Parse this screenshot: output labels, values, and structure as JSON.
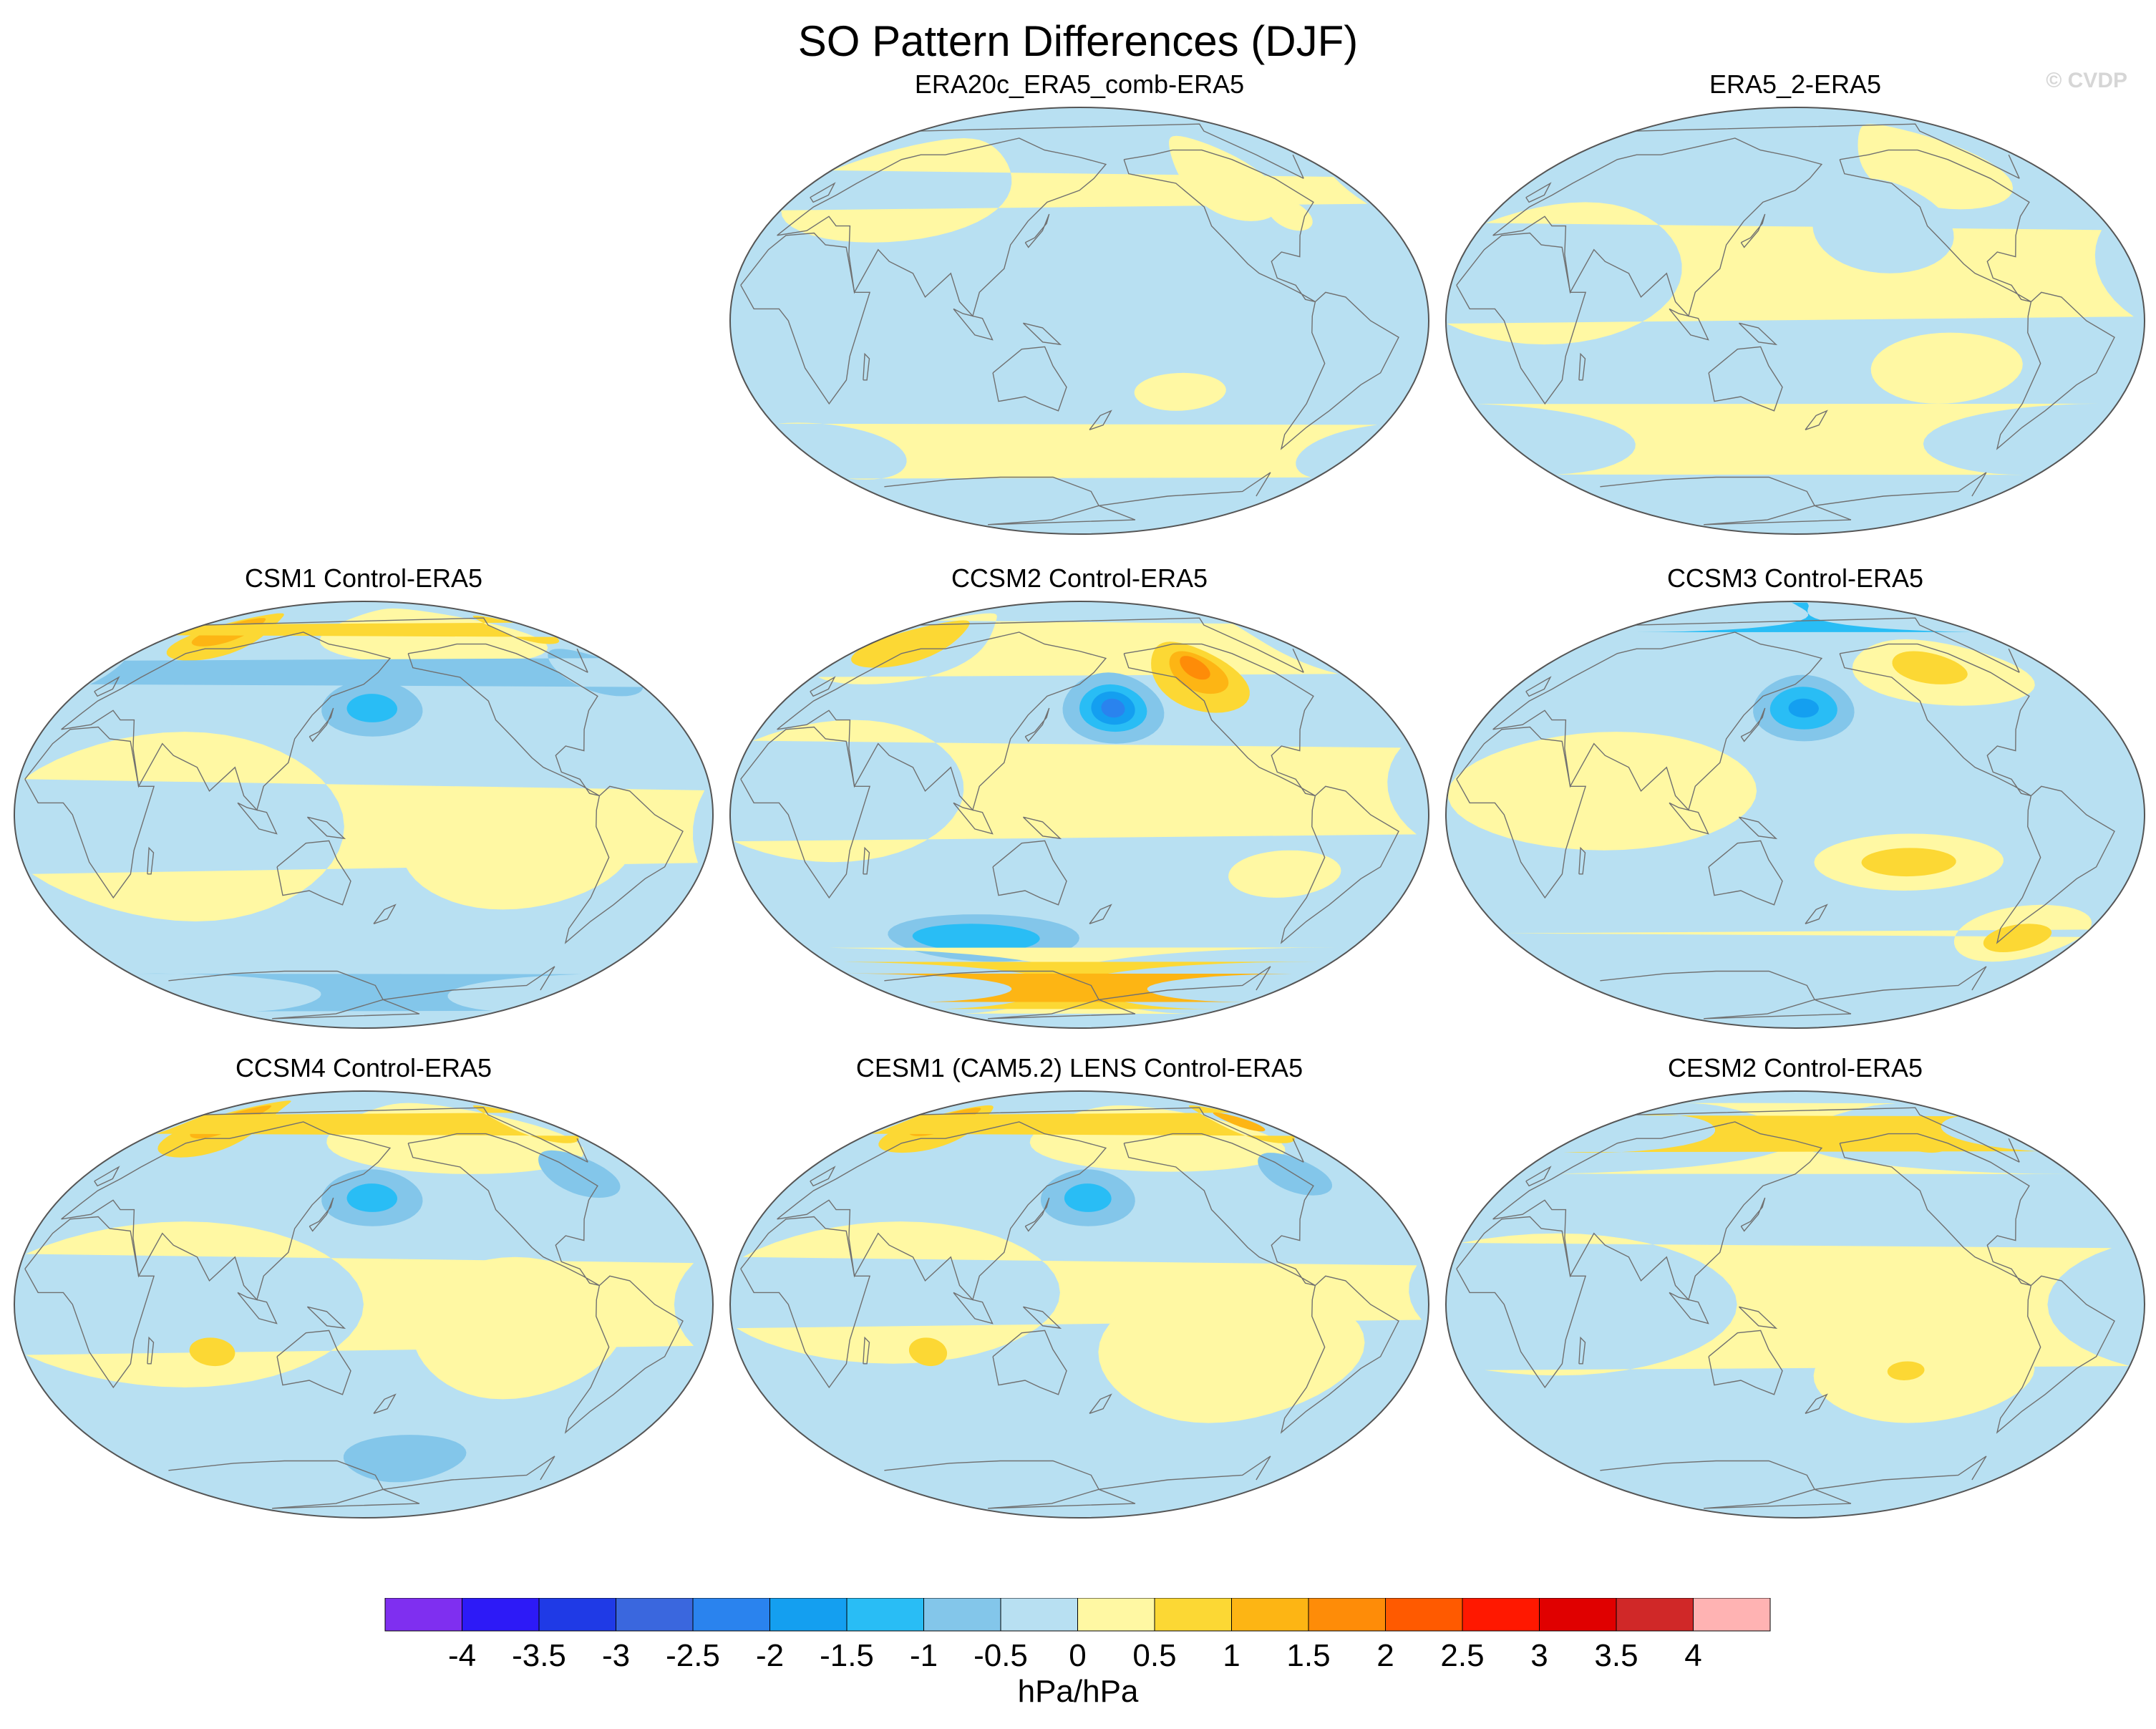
{
  "title": "SO Pattern Differences (DJF)",
  "credit": "© CVDP",
  "units": "hPa/hPa",
  "colors": {
    "land_outline": "#707070",
    "map_border": "#555555",
    "c_-0.5": "#b8e0f2",
    "c_-1": "#83c6ea",
    "c_-1.5": "#29bdf5",
    "c_-2": "#149ff0",
    "c_-2.5": "#2a83ee",
    "c_-3": "#3a67de",
    "c_0.5": "#fff8a3",
    "c_1": "#fcd834",
    "c_1.5": "#fdb514",
    "c_2": "#fe8c08"
  },
  "colorbar": {
    "ticks": [
      "-4",
      "-3.5",
      "-3",
      "-2.5",
      "-2",
      "-1.5",
      "-1",
      "-0.5",
      "0",
      "0.5",
      "1",
      "1.5",
      "2",
      "2.5",
      "3",
      "3.5",
      "4"
    ],
    "colors": [
      "#7f2ff0",
      "#2d1af7",
      "#1f3ae6",
      "#3a67de",
      "#2a83ee",
      "#149ff0",
      "#29bdf5",
      "#83c6ea",
      "#b8e0f2",
      "#fff8a3",
      "#fcd834",
      "#fdb514",
      "#fe8c08",
      "#ff5a00",
      "#ff1800",
      "#e00000",
      "#d02828",
      "#ffb3b3"
    ]
  },
  "panels": [
    {
      "title": "ERA20c_ERA5_comb-ERA5",
      "blobs": [
        {
          "c": "c_0.5",
          "lon": 45,
          "lat": 55,
          "rx": 70,
          "ry": 22
        },
        {
          "c": "c_0.5",
          "lon": -100,
          "lat": 60,
          "rx": 30,
          "ry": 18
        },
        {
          "c": "c_0.5",
          "lon": -5,
          "lat": -55,
          "rx": 50,
          "ry": 12
        },
        {
          "c": "c_0.5",
          "lon": -145,
          "lat": -30,
          "rx": 25,
          "ry": 8
        },
        {
          "c": "c_0.5",
          "lon": -75,
          "lat": 45,
          "rx": 12,
          "ry": 7
        }
      ]
    },
    {
      "title": "ERA5_2-ERA5",
      "blobs": [
        {
          "c": "c_0.5",
          "lon": 30,
          "lat": 20,
          "rx": 70,
          "ry": 30
        },
        {
          "c": "c_0.5",
          "lon": -100,
          "lat": 65,
          "rx": 50,
          "ry": 18
        },
        {
          "c": "c_0.5",
          "lon": -30,
          "lat": -50,
          "rx": 90,
          "ry": 15
        },
        {
          "c": "c_0.5",
          "lon": -120,
          "lat": -20,
          "rx": 40,
          "ry": 15
        },
        {
          "c": "c_-0.5",
          "lon": -150,
          "lat": 40,
          "rx": 40,
          "ry": 20
        }
      ]
    },
    {
      "title": "CSM1 Control-ERA5",
      "blobs": [
        {
          "c": "c_0.5",
          "lon": 60,
          "lat": -5,
          "rx": 90,
          "ry": 40
        },
        {
          "c": "c_0.5",
          "lon": -120,
          "lat": -15,
          "rx": 60,
          "ry": 25
        },
        {
          "c": "c_0.5",
          "lon": -140,
          "lat": 75,
          "rx": 100,
          "ry": 12
        },
        {
          "c": "c_1",
          "lon": 30,
          "lat": 75,
          "rx": 35,
          "ry": 10
        },
        {
          "c": "c_1.5",
          "lon": 25,
          "lat": 77,
          "rx": 22,
          "ry": 6
        },
        {
          "c": "c_1",
          "lon": -40,
          "lat": 78,
          "rx": 22,
          "ry": 6
        },
        {
          "c": "c_-1",
          "lon": 165,
          "lat": 45,
          "rx": 30,
          "ry": 12
        },
        {
          "c": "c_-1.5",
          "lon": 165,
          "lat": 45,
          "rx": 15,
          "ry": 6
        },
        {
          "c": "c_-1",
          "lon": -40,
          "lat": 60,
          "rx": 25,
          "ry": 10
        },
        {
          "c": "c_-1",
          "lon": 0,
          "lat": -75,
          "rx": 120,
          "ry": 8
        }
      ]
    },
    {
      "title": "CCSM2 Control-ERA5",
      "blobs": [
        {
          "c": "c_0.5",
          "lon": 30,
          "lat": 10,
          "rx": 70,
          "ry": 30
        },
        {
          "c": "c_0.5",
          "lon": -90,
          "lat": -25,
          "rx": 30,
          "ry": 10
        },
        {
          "c": "c_0.5",
          "lon": 20,
          "lat": 70,
          "rx": 60,
          "ry": 15
        },
        {
          "c": "c_1",
          "lon": 15,
          "lat": 72,
          "rx": 35,
          "ry": 10
        },
        {
          "c": "c_1",
          "lon": -120,
          "lat": 58,
          "rx": 30,
          "ry": 15
        },
        {
          "c": "c_1.5",
          "lon": -118,
          "lat": 60,
          "rx": 18,
          "ry": 9
        },
        {
          "c": "c_2",
          "lon": -118,
          "lat": 62,
          "rx": 9,
          "ry": 5
        },
        {
          "c": "c_-1",
          "lon": -180,
          "lat": 45,
          "rx": 30,
          "ry": 15
        },
        {
          "c": "c_-1.5",
          "lon": -180,
          "lat": 45,
          "rx": 20,
          "ry": 10
        },
        {
          "c": "c_-2",
          "lon": -180,
          "lat": 45,
          "rx": 13,
          "ry": 7
        },
        {
          "c": "c_-2.5",
          "lon": -180,
          "lat": 45,
          "rx": 7,
          "ry": 4
        },
        {
          "c": "c_-1",
          "lon": 100,
          "lat": -52,
          "rx": 60,
          "ry": 10
        },
        {
          "c": "c_-1.5",
          "lon": 95,
          "lat": -52,
          "rx": 40,
          "ry": 6
        },
        {
          "c": "c_0.5",
          "lon": -30,
          "lat": -70,
          "rx": 190,
          "ry": 14
        },
        {
          "c": "c_1",
          "lon": -30,
          "lat": -72,
          "rx": 170,
          "ry": 10
        },
        {
          "c": "c_1.5",
          "lon": -20,
          "lat": -73,
          "rx": 120,
          "ry": 6
        }
      ]
    },
    {
      "title": "CCSM3 Control-ERA5",
      "blobs": [
        {
          "c": "c_0.5",
          "lon": 60,
          "lat": 10,
          "rx": 80,
          "ry": 25
        },
        {
          "c": "c_0.5",
          "lon": -140,
          "lat": -20,
          "rx": 50,
          "ry": 12
        },
        {
          "c": "c_1",
          "lon": -140,
          "lat": -20,
          "rx": 25,
          "ry": 6
        },
        {
          "c": "c_0.5",
          "lon": -60,
          "lat": -50,
          "rx": 40,
          "ry": 12
        },
        {
          "c": "c_1",
          "lon": -60,
          "lat": -52,
          "rx": 20,
          "ry": 6
        },
        {
          "c": "c_0.5",
          "lon": -100,
          "lat": 60,
          "rx": 60,
          "ry": 14
        },
        {
          "c": "c_1",
          "lon": -105,
          "lat": 62,
          "rx": 25,
          "ry": 7
        },
        {
          "c": "c_-1.5",
          "lon": 0,
          "lat": 85,
          "rx": 180,
          "ry": 8
        },
        {
          "c": "c_-1",
          "lon": 165,
          "lat": 45,
          "rx": 30,
          "ry": 14
        },
        {
          "c": "c_-1.5",
          "lon": 165,
          "lat": 45,
          "rx": 20,
          "ry": 9
        },
        {
          "c": "c_-2",
          "lon": 165,
          "lat": 45,
          "rx": 9,
          "ry": 4
        }
      ]
    },
    {
      "title": "CCSM4 Control-ERA5",
      "blobs": [
        {
          "c": "c_0.5",
          "lon": 60,
          "lat": 0,
          "rx": 100,
          "ry": 35
        },
        {
          "c": "c_0.5",
          "lon": -120,
          "lat": -10,
          "rx": 55,
          "ry": 30
        },
        {
          "c": "c_0.5",
          "lon": -130,
          "lat": 70,
          "rx": 100,
          "ry": 15
        },
        {
          "c": "c_1",
          "lon": 30,
          "lat": 74,
          "rx": 35,
          "ry": 12
        },
        {
          "c": "c_1.5",
          "lon": 25,
          "lat": 77,
          "rx": 20,
          "ry": 7
        },
        {
          "c": "c_1",
          "lon": -40,
          "lat": 76,
          "rx": 25,
          "ry": 8
        },
        {
          "c": "c_1",
          "lon": 80,
          "lat": -20,
          "rx": 12,
          "ry": 6
        },
        {
          "c": "c_-1",
          "lon": 165,
          "lat": 45,
          "rx": 30,
          "ry": 12
        },
        {
          "c": "c_-1.5",
          "lon": 165,
          "lat": 45,
          "rx": 15,
          "ry": 6
        },
        {
          "c": "c_-1",
          "lon": -60,
          "lat": 55,
          "rx": 22,
          "ry": 10
        },
        {
          "c": "c_-1",
          "lon": -170,
          "lat": -65,
          "rx": 45,
          "ry": 10
        }
      ]
    },
    {
      "title": "CESM1 (CAM5.2) LENS Control-ERA5",
      "blobs": [
        {
          "c": "c_0.5",
          "lon": 60,
          "lat": 5,
          "rx": 90,
          "ry": 30
        },
        {
          "c": "c_0.5",
          "lon": -120,
          "lat": -20,
          "rx": 70,
          "ry": 30
        },
        {
          "c": "c_0.5",
          "lon": -140,
          "lat": 70,
          "rx": 100,
          "ry": 14
        },
        {
          "c": "c_1",
          "lon": 30,
          "lat": 74,
          "rx": 35,
          "ry": 10
        },
        {
          "c": "c_1.5",
          "lon": 25,
          "lat": 77,
          "rx": 20,
          "ry": 6
        },
        {
          "c": "c_1",
          "lon": -40,
          "lat": 76,
          "rx": 25,
          "ry": 8
        },
        {
          "c": "c_1.5",
          "lon": -40,
          "lat": 77,
          "rx": 12,
          "ry": 4
        },
        {
          "c": "c_1",
          "lon": 80,
          "lat": -20,
          "rx": 10,
          "ry": 6
        },
        {
          "c": "c_-1",
          "lon": 165,
          "lat": 45,
          "rx": 28,
          "ry": 12
        },
        {
          "c": "c_-1.5",
          "lon": 165,
          "lat": 45,
          "rx": 14,
          "ry": 6
        },
        {
          "c": "c_-1",
          "lon": -60,
          "lat": 55,
          "rx": 20,
          "ry": 9
        }
      ]
    },
    {
      "title": "CESM2 Control-ERA5",
      "blobs": [
        {
          "c": "c_0.5",
          "lon": 30,
          "lat": 0,
          "rx": 100,
          "ry": 30
        },
        {
          "c": "c_0.5",
          "lon": -130,
          "lat": -30,
          "rx": 60,
          "ry": 20
        },
        {
          "c": "c_0.5",
          "lon": -20,
          "lat": 70,
          "rx": 180,
          "ry": 15
        },
        {
          "c": "c_1",
          "lon": 10,
          "lat": 72,
          "rx": 80,
          "ry": 8
        },
        {
          "c": "c_1",
          "lon": -100,
          "lat": 70,
          "rx": 20,
          "ry": 6
        },
        {
          "c": "c_1",
          "lon": -140,
          "lat": -28,
          "rx": 10,
          "ry": 4
        }
      ]
    }
  ]
}
